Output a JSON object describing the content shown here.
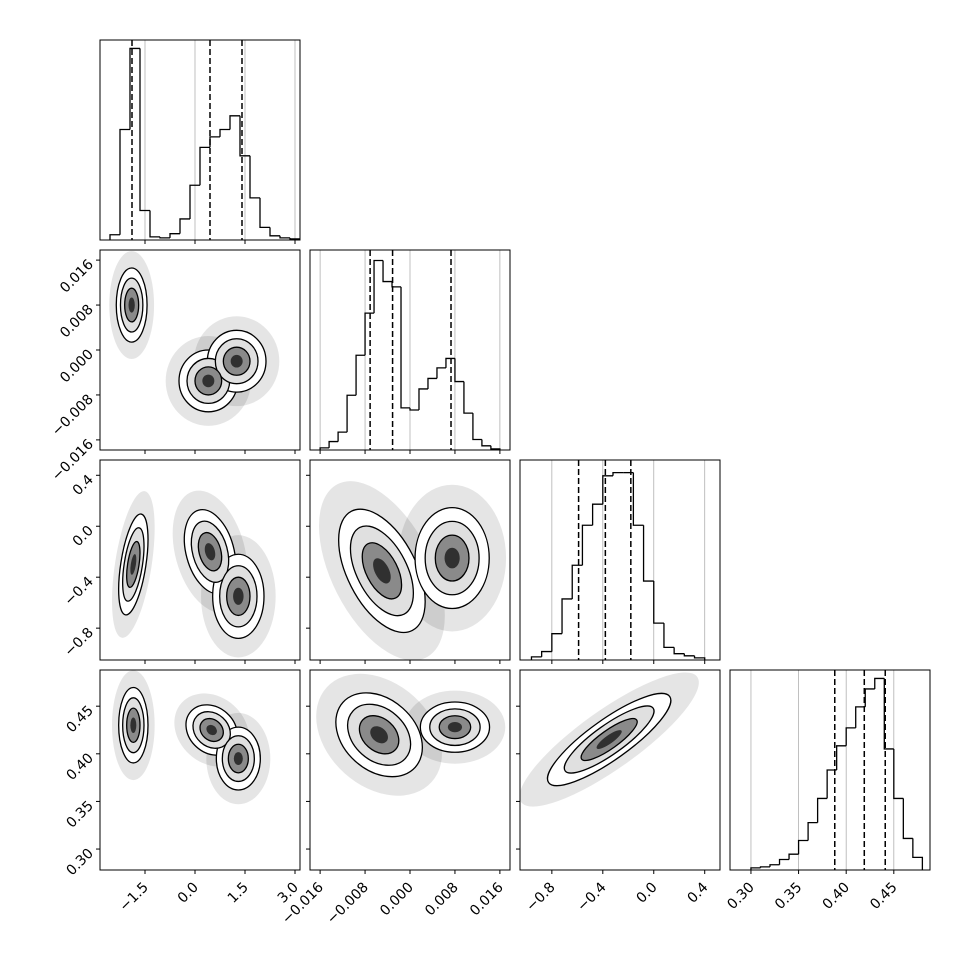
{
  "chart_data": {
    "type": "corner",
    "color": "#000000",
    "grid": true,
    "params": [
      {
        "range": [
          -2.85,
          3.15
        ],
        "ticks": [
          {
            "value": -1.5,
            "label": "−1.5"
          },
          {
            "value": 0,
            "label": "0.0"
          },
          1.5,
          {
            "value": 3,
            "label": "3.0"
          }
        ]
      },
      {
        "range": [
          -0.0178,
          0.0178
        ],
        "ticks": [
          {
            "value": -0.016,
            "label": "−0.016"
          },
          {
            "value": -0.008,
            "label": "−0.008"
          },
          {
            "value": 0,
            "label": "0.000"
          },
          0.008,
          0.016
        ]
      },
      {
        "range": [
          -1.05,
          0.52
        ],
        "ticks": [
          {
            "value": -0.8,
            "label": "−0.8"
          },
          {
            "value": -0.4,
            "label": "−0.4"
          },
          {
            "value": 0,
            "label": "0.0"
          },
          0.4
        ]
      },
      {
        "range": [
          0.278,
          0.488
        ],
        "ticks": [
          {
            "value": 0.3,
            "label": "0.30"
          },
          0.35,
          {
            "value": 0.4,
            "label": "0.40"
          },
          0.45
        ]
      }
    ],
    "histograms": [
      {
        "bins": [
          -2.55,
          -2.25,
          -1.95,
          -1.65,
          -1.35,
          -1.05,
          -0.75,
          -0.45,
          -0.15,
          0.15,
          0.45,
          0.75,
          1.05,
          1.35,
          1.65,
          1.95,
          2.25,
          2.55,
          2.85,
          3.15
        ],
        "counts": [
          5,
          105,
          182,
          28,
          3,
          2,
          6,
          20,
          52,
          88,
          98,
          105,
          118,
          80,
          40,
          12,
          4,
          2,
          1
        ],
        "quantiles": [
          -1.89,
          0.45,
          1.41
        ],
        "ylim": [
          0,
          190
        ]
      },
      {
        "bins": [
          -0.016,
          -0.0144,
          -0.0128,
          -0.0112,
          -0.0096,
          -0.008,
          -0.0064,
          -0.0048,
          -0.0032,
          -0.0016,
          0,
          0.0016,
          0.0032,
          0.0048,
          0.0064,
          0.008,
          0.0096,
          0.0112,
          0.0128,
          0.0144,
          0.016
        ],
        "counts": [
          2,
          8,
          17,
          52,
          90,
          130,
          180,
          160,
          155,
          40,
          38,
          58,
          68,
          78,
          87,
          65,
          35,
          10,
          4,
          1
        ],
        "quantiles": [
          -0.0071,
          -0.0031,
          0.0073
        ],
        "ylim": [
          0,
          190
        ]
      },
      {
        "bins": [
          -0.96,
          -0.88,
          -0.8,
          -0.72,
          -0.64,
          -0.56,
          -0.48,
          -0.4,
          -0.32,
          -0.24,
          -0.16,
          -0.08,
          0,
          0.08,
          0.16,
          0.24,
          0.32,
          0.4
        ],
        "counts": [
          3,
          8,
          25,
          58,
          90,
          128,
          148,
          175,
          178,
          178,
          128,
          75,
          35,
          12,
          6,
          4,
          2
        ],
        "quantiles": [
          -0.59,
          -0.38,
          -0.18
        ],
        "ylim": [
          0,
          190
        ]
      },
      {
        "bins": [
          0.3,
          0.31,
          0.32,
          0.33,
          0.34,
          0.35,
          0.36,
          0.37,
          0.38,
          0.39,
          0.4,
          0.41,
          0.42,
          0.43,
          0.44,
          0.45,
          0.46,
          0.47,
          0.48
        ],
        "counts": [
          2,
          3,
          5,
          10,
          15,
          28,
          45,
          68,
          95,
          118,
          135,
          155,
          172,
          182,
          115,
          68,
          30,
          12
        ],
        "quantiles": [
          0.388,
          0.419,
          0.441
        ],
        "ylim": [
          0,
          190
        ]
      }
    ],
    "density": [
      {
        "x_param": 0,
        "y_param": 1,
        "blobs": [
          {
            "cx": -1.9,
            "cy": 0.008,
            "sx": 0.21,
            "sy": 0.003,
            "corr": 0
          },
          {
            "cx": 0.4,
            "cy": -0.0055,
            "sx": 0.4,
            "sy": 0.0025,
            "corr": 0
          },
          {
            "cx": 1.25,
            "cy": -0.002,
            "sx": 0.4,
            "sy": 0.0025,
            "corr": 0
          }
        ]
      },
      {
        "x_param": 0,
        "y_param": 2,
        "blobs": [
          {
            "cx": -1.85,
            "cy": -0.3,
            "sx": 0.2,
            "sy": 0.18,
            "corr": 0.5
          },
          {
            "cx": 0.45,
            "cy": -0.2,
            "sx": 0.35,
            "sy": 0.15,
            "corr": -0.3
          },
          {
            "cx": 1.3,
            "cy": -0.55,
            "sx": 0.35,
            "sy": 0.15,
            "corr": 0
          }
        ]
      },
      {
        "x_param": 1,
        "y_param": 2,
        "blobs": [
          {
            "cx": -0.005,
            "cy": -0.35,
            "sx": 0.0035,
            "sy": 0.22,
            "corr": -0.5
          },
          {
            "cx": 0.0075,
            "cy": -0.25,
            "sx": 0.003,
            "sy": 0.18,
            "corr": 0
          }
        ]
      },
      {
        "x_param": 0,
        "y_param": 3,
        "blobs": [
          {
            "cx": -1.85,
            "cy": 0.43,
            "sx": 0.2,
            "sy": 0.018,
            "corr": 0
          },
          {
            "cx": 0.5,
            "cy": 0.425,
            "sx": 0.35,
            "sy": 0.012,
            "corr": -0.2
          },
          {
            "cx": 1.3,
            "cy": 0.395,
            "sx": 0.3,
            "sy": 0.015,
            "corr": 0
          }
        ]
      },
      {
        "x_param": 1,
        "y_param": 3,
        "blobs": [
          {
            "cx": -0.0055,
            "cy": 0.42,
            "sx": 0.0035,
            "sy": 0.02,
            "corr": -0.3
          },
          {
            "cx": 0.008,
            "cy": 0.428,
            "sx": 0.0028,
            "sy": 0.012,
            "corr": 0
          }
        ]
      },
      {
        "x_param": 2,
        "y_param": 3,
        "blobs": [
          {
            "cx": -0.35,
            "cy": 0.415,
            "sx": 0.22,
            "sy": 0.022,
            "corr": 0.85
          }
        ]
      }
    ]
  }
}
